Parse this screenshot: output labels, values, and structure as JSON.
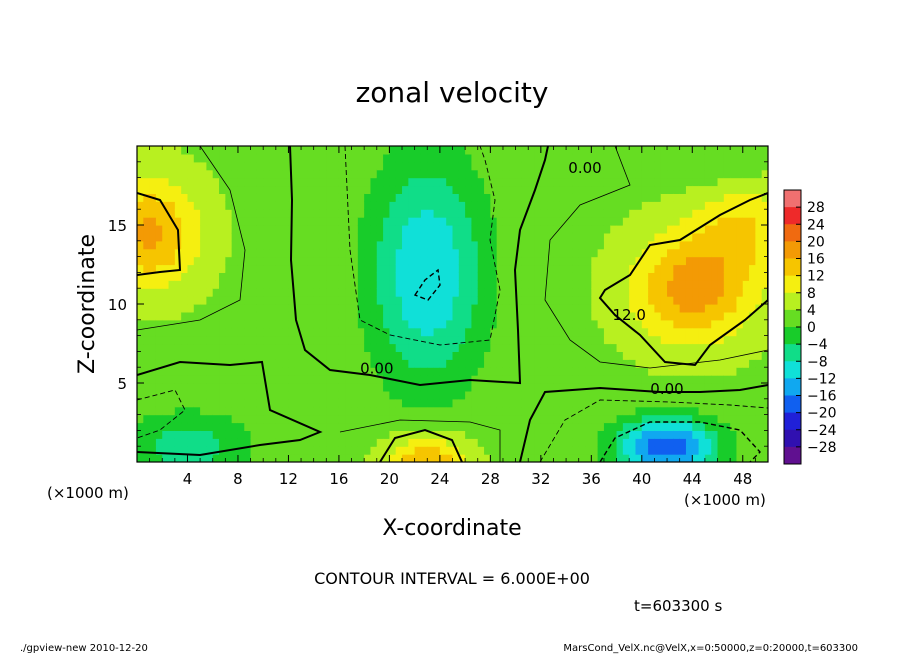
{
  "chart_data": {
    "type": "heatmap",
    "title": "zonal velocity",
    "xlabel": "X-coordinate",
    "ylabel": "Z-coordinate",
    "x_unit": "(×1000 m)",
    "x_unit_right": "(×1000 m)",
    "y_unit": "(×1000 m)",
    "x_ticks": [
      "4",
      "8",
      "12",
      "16",
      "20",
      "24",
      "28",
      "32",
      "36",
      "40",
      "44",
      "48"
    ],
    "y_ticks": [
      "5",
      "10",
      "15"
    ],
    "xlim": [
      0,
      50
    ],
    "ylim": [
      0,
      20
    ],
    "colorbar_levels": [
      "28",
      "24",
      "20",
      "16",
      "12",
      "8",
      "4",
      "0",
      "−4",
      "−8",
      "−12",
      "−16",
      "−20",
      "−24",
      "−28"
    ],
    "colorbar_colors": [
      "#f07070",
      "#ee2a2a",
      "#f06a10",
      "#f39a05",
      "#f6c500",
      "#f5ef10",
      "#b8f020",
      "#66dd22",
      "#18cc2a",
      "#10dd88",
      "#10e0d8",
      "#10a8f0",
      "#1060f0",
      "#2020d8",
      "#3010b0",
      "#601090"
    ],
    "contour_labels": [
      {
        "text": "0.00",
        "x": 35.5,
        "z": 18.3
      },
      {
        "text": "0.00",
        "x": 19.0,
        "z": 5.6
      },
      {
        "text": "0.00",
        "x": 42.0,
        "z": 4.3
      },
      {
        "text": "12.0",
        "x": 39.0,
        "z": 9.0
      }
    ],
    "field": {
      "base": 3,
      "blobs": [
        {
          "x": 1,
          "z": 14.5,
          "amp": 14,
          "sx": 4,
          "sz": 3.5
        },
        {
          "x": 44,
          "z": 11,
          "amp": 15,
          "sx": 5,
          "sz": 3.5
        },
        {
          "x": 48,
          "z": 15,
          "amp": 8,
          "sx": 4,
          "sz": 3
        },
        {
          "x": 23,
          "z": 0,
          "amp": 14,
          "sx": 3.2,
          "sz": 1.7
        },
        {
          "x": 23,
          "z": 12,
          "amp": -15,
          "sx": 4.5,
          "sz": 7
        },
        {
          "x": 42,
          "z": 1,
          "amp": -22,
          "sx": 4,
          "sz": 1.8
        },
        {
          "x": 4,
          "z": 1,
          "amp": -9,
          "sx": 5,
          "sz": 2.2
        },
        {
          "x": 46,
          "z": 19,
          "amp": -3,
          "sx": 4,
          "sz": 2
        }
      ]
    }
  },
  "contour_interval": "CONTOUR INTERVAL = 6.000E+00",
  "time_label": "t=603300 s",
  "footer_left": "./gpview-new  2010-12-20",
  "footer_right": "MarsCond_VelX.nc@VelX,x=0:50000,z=0:20000,t=603300",
  "colors": {
    "axes": "#000000",
    "background": "#ffffff"
  }
}
